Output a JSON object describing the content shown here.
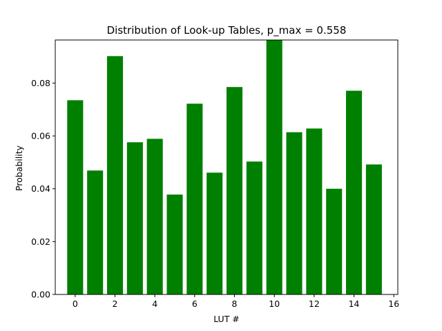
{
  "chart_data": {
    "type": "bar",
    "title": "Distribution of Look-up Tables, p_max = 0.558",
    "xlabel": "LUT #",
    "ylabel": "Probability",
    "x": [
      0,
      1,
      2,
      3,
      4,
      5,
      6,
      7,
      8,
      9,
      10,
      11,
      12,
      13,
      14,
      15
    ],
    "values": [
      0.0735,
      0.0469,
      0.0902,
      0.0576,
      0.0589,
      0.0378,
      0.0722,
      0.0461,
      0.0785,
      0.0503,
      0.0963,
      0.0614,
      0.0628,
      0.04,
      0.0771,
      0.0492
    ],
    "xlim": [
      -1.0,
      16.2
    ],
    "ylim": [
      0,
      0.0963
    ],
    "xticks": [
      0,
      2,
      4,
      6,
      8,
      10,
      12,
      14,
      16
    ],
    "yticks": [
      0.0,
      0.02,
      0.04,
      0.06,
      0.08
    ],
    "xtick_labels": [
      "0",
      "2",
      "4",
      "6",
      "8",
      "10",
      "12",
      "14",
      "16"
    ],
    "ytick_labels": [
      "0.00",
      "0.02",
      "0.04",
      "0.06",
      "0.08"
    ],
    "bar_color": "#008000",
    "grid": false,
    "legend": "none"
  }
}
